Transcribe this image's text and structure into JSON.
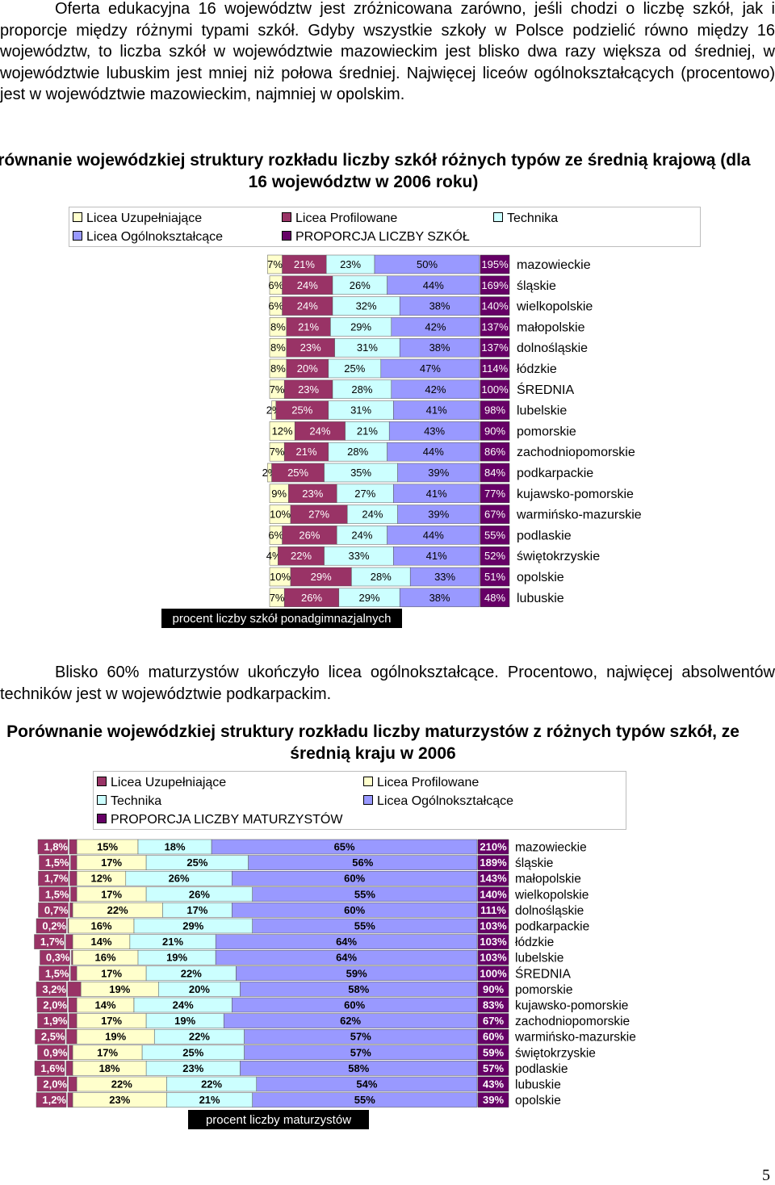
{
  "text": {
    "paragraph1": "Oferta edukacyjna 16 województw jest zróżnicowana zarówno, jeśli chodzi o liczbę szkół, jak i proporcje między różnymi typami szkół. Gdyby wszystkie szkoły w Polsce podzielić równo między 16 województw, to liczba szkół w województwie mazowieckim jest blisko dwa razy większa od średniej, w województwie lubuskim jest mniej niż połowa średniej. Najwięcej liceów ogólnokształcących (procentowo) jest w województwie mazowieckim, najmniej w opolskim.",
    "paragraph2": "Blisko 60% maturzystów ukończyło licea ogólnokształcące. Procentowo, najwięcej absolwentów techników jest w województwie podkarpackim.",
    "page_number": "5"
  },
  "chart_data": [
    {
      "type": "bar",
      "stacked": true,
      "orientation": "horizontal",
      "title": "Porównanie wojewódzkiej struktury rozkładu liczby szkół różnych typów ze średnią krajową (dla 16 województw w 2006 roku)",
      "xlabel": "procent liczby szkół ponadgimnazjalnych",
      "legend": [
        {
          "name": "Licea Uzupełniające",
          "color": "#ffffcc"
        },
        {
          "name": "Licea Profilowane",
          "color": "#993366"
        },
        {
          "name": "Technika",
          "color": "#ccffff"
        },
        {
          "name": "Licea Ogólnokształcące",
          "color": "#9999ff"
        },
        {
          "name": "PROPORCJA LICZBY SZKÓŁ",
          "color": "#660066"
        }
      ],
      "categories": [
        "mazowieckie",
        "śląskie",
        "wielkopolskie",
        "małopolskie",
        "dolnośląskie",
        "łódzkie",
        "ŚREDNIA",
        "lubelskie",
        "pomorskie",
        "zachodniopomorskie",
        "podkarpackie",
        "kujawsko-pomorskie",
        "warmińsko-mazurskie",
        "podlaskie",
        "świętokrzyskie",
        "opolskie",
        "lubuskie"
      ],
      "series": [
        {
          "name": "Licea Uzupełniające",
          "values": [
            7,
            6,
            6,
            8,
            8,
            8,
            7,
            2,
            12,
            7,
            2,
            9,
            10,
            6,
            4,
            10,
            7
          ]
        },
        {
          "name": "Licea Profilowane",
          "values": [
            21,
            24,
            24,
            21,
            23,
            20,
            23,
            25,
            24,
            21,
            25,
            23,
            27,
            26,
            22,
            29,
            26
          ]
        },
        {
          "name": "Technika",
          "values": [
            23,
            26,
            32,
            29,
            31,
            25,
            28,
            31,
            21,
            28,
            35,
            27,
            24,
            24,
            33,
            28,
            29
          ]
        },
        {
          "name": "Licea Ogólnokształcące",
          "values": [
            50,
            44,
            38,
            42,
            38,
            47,
            42,
            41,
            43,
            44,
            39,
            41,
            39,
            44,
            41,
            33,
            38
          ]
        },
        {
          "name": "PROPORCJA LICZBY SZKÓŁ",
          "values": [
            195,
            169,
            140,
            137,
            137,
            114,
            100,
            98,
            90,
            86,
            84,
            77,
            67,
            55,
            52,
            51,
            48
          ]
        }
      ]
    },
    {
      "type": "bar",
      "stacked": true,
      "orientation": "horizontal",
      "title": "Porównanie wojewódzkiej struktury rozkładu liczby maturzystów z różnych typów szkół, ze średnią kraju w 2006",
      "xlabel": "procent liczby maturzystów",
      "legend": [
        {
          "name": "Licea Uzupełniające",
          "color": "#993366"
        },
        {
          "name": "Licea Profilowane",
          "color": "#ffffcc"
        },
        {
          "name": "Technika",
          "color": "#ccffff"
        },
        {
          "name": "Licea Ogólnokształcące",
          "color": "#9999ff"
        },
        {
          "name": "PROPORCJA LICZBY MATURZYSTÓW",
          "color": "#660066"
        }
      ],
      "categories": [
        "mazowieckie",
        "śląskie",
        "małopolskie",
        "wielkopolskie",
        "dolnośląskie",
        "podkarpackie",
        "łódzkie",
        "lubelskie",
        "ŚREDNIA",
        "pomorskie",
        "kujawsko-pomorskie",
        "zachodniopomorskie",
        "warmińsko-mazurskie",
        "świętokrzyskie",
        "podlaskie",
        "lubuskie",
        "opolskie"
      ],
      "series": [
        {
          "name": "Licea Uzupełniające",
          "values": [
            1.8,
            1.5,
            1.7,
            1.5,
            0.7,
            0.2,
            1.7,
            0.3,
            1.5,
            3.2,
            2.0,
            1.9,
            2.5,
            0.9,
            1.6,
            2.0,
            1.2
          ]
        },
        {
          "name": "Licea Profilowane",
          "values": [
            15,
            17,
            12,
            17,
            22,
            16,
            14,
            16,
            17,
            19,
            14,
            17,
            19,
            17,
            18,
            22,
            23
          ]
        },
        {
          "name": "Technika",
          "values": [
            18,
            25,
            26,
            26,
            17,
            29,
            21,
            19,
            22,
            20,
            24,
            19,
            22,
            25,
            23,
            22,
            21
          ]
        },
        {
          "name": "Licea Ogólnokształcące",
          "values": [
            65,
            56,
            60,
            55,
            60,
            55,
            64,
            64,
            59,
            58,
            60,
            62,
            57,
            57,
            58,
            54,
            55
          ]
        },
        {
          "name": "PROPORCJA LICZBY MATURZYSTÓW",
          "values": [
            210,
            189,
            143,
            140,
            111,
            103,
            103,
            103,
            100,
            90,
            83,
            67,
            60,
            59,
            57,
            43,
            39
          ]
        }
      ]
    }
  ]
}
